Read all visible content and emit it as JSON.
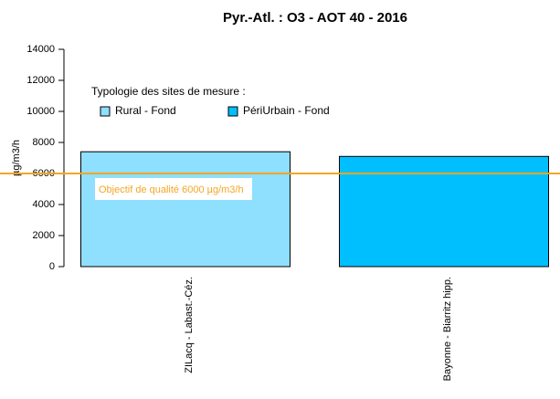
{
  "chart_data": {
    "type": "bar",
    "title": "Pyr.-Atl. : O3 - AOT 40 - 2016",
    "y_label": "µg/m3/h",
    "categories": [
      "ZILacq - Labast.-Céz.",
      "Bayonne - Biarritz hipp."
    ],
    "legend_title": "Typologie des sites de mesure :",
    "series": [
      {
        "name": "Rural - Fond",
        "color": "#8fdfff",
        "values": [
          7400,
          null
        ]
      },
      {
        "name": "PériUrbain - Fond",
        "color": "#00bfff",
        "values": [
          null,
          7100
        ]
      }
    ],
    "reference_line": {
      "value": 6000,
      "label": "Objectif de qualité 6000 µg/m3/h",
      "color": "#f5a623"
    },
    "ylim": [
      0,
      14000
    ],
    "yticks": [
      0,
      2000,
      4000,
      6000,
      8000,
      10000,
      12000,
      14000
    ]
  }
}
